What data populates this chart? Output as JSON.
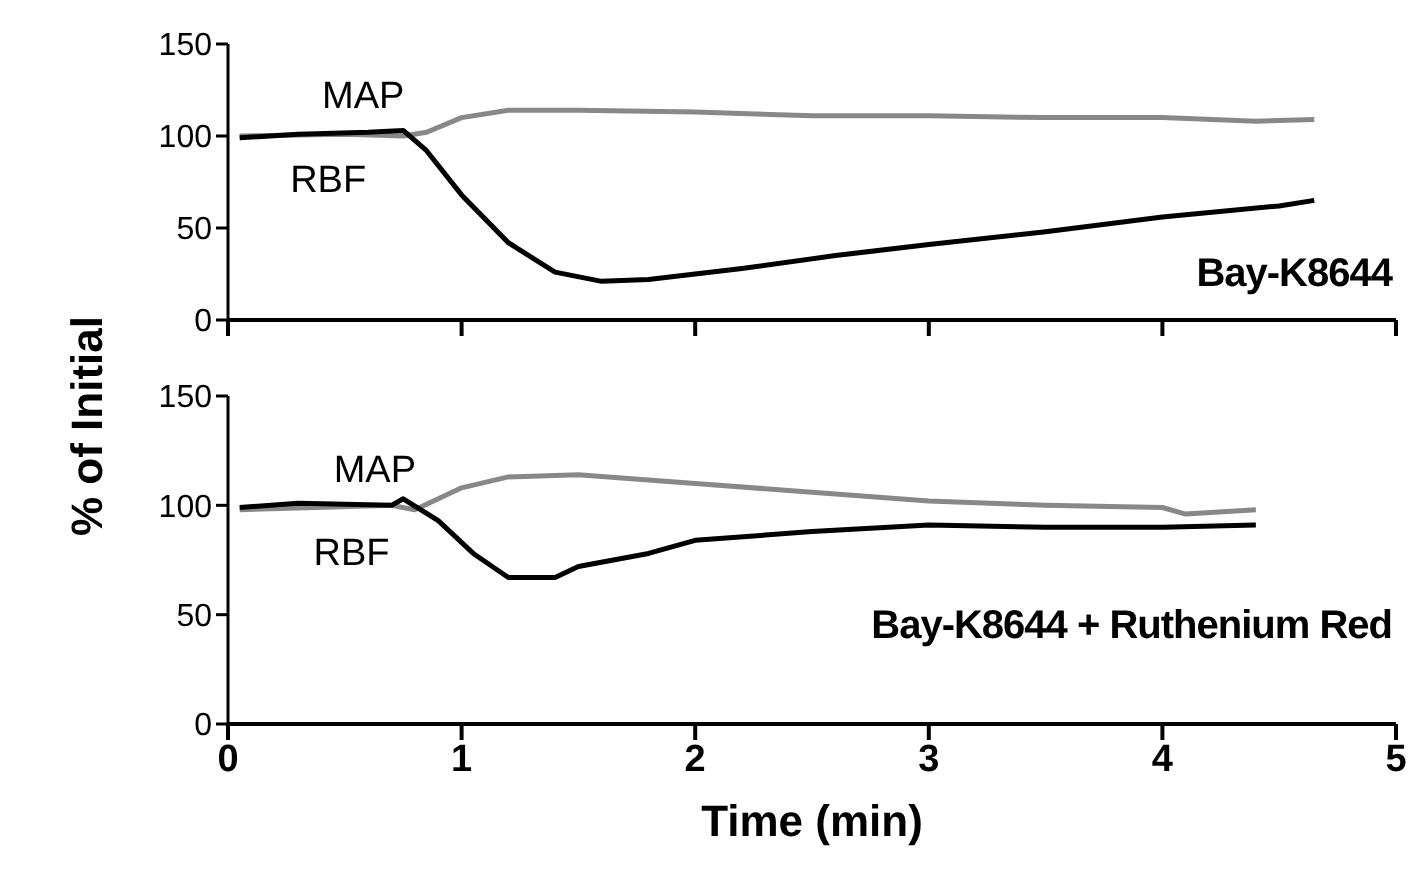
{
  "chart_data": [
    {
      "type": "line",
      "ylabel": "% of Initial",
      "annotations": [
        "Bay-K8644"
      ],
      "xlim": [
        0,
        5
      ],
      "xticks": [
        {
          "value": 0,
          "label": null
        },
        {
          "value": 1,
          "label": null
        },
        {
          "value": 2,
          "label": null
        },
        {
          "value": 3,
          "label": null
        },
        {
          "value": 4,
          "label": null
        },
        {
          "value": 5,
          "label": null
        }
      ],
      "ylim": [
        0,
        150
      ],
      "yticks": [
        0,
        50,
        100,
        150
      ],
      "tick_labels": "y",
      "grid": false,
      "legend": false,
      "marker": "none",
      "series": [
        {
          "name": "MAP",
          "color": "#888888",
          "x": [
            0.05,
            0.5,
            0.75,
            0.85,
            1.0,
            1.2,
            1.5,
            2,
            2.5,
            3,
            3.5,
            4,
            4.4,
            4.65
          ],
          "values": [
            100,
            101,
            100,
            102,
            110,
            114,
            114,
            113,
            111,
            111,
            110,
            110,
            108,
            109
          ]
        },
        {
          "name": "RBF",
          "color": "#000000",
          "x": [
            0.05,
            0.3,
            0.6,
            0.75,
            0.85,
            1.0,
            1.2,
            1.4,
            1.6,
            1.8,
            2.2,
            2.6,
            3,
            3.5,
            4,
            4.5,
            4.65
          ],
          "values": [
            99,
            101,
            102,
            103,
            92,
            68,
            42,
            26,
            21,
            22,
            28,
            35,
            41,
            48,
            56,
            62,
            65
          ]
        }
      ]
    },
    {
      "type": "line",
      "xlabel": "Time (min)",
      "annotations": [
        "Bay-K8644 + Ruthenium Red"
      ],
      "xlim": [
        0,
        5
      ],
      "xticks": [
        0,
        1,
        2,
        3,
        4,
        5
      ],
      "ylim": [
        0,
        150
      ],
      "yticks": [
        0,
        50,
        100,
        150
      ],
      "grid": false,
      "legend": false,
      "marker": "none",
      "series": [
        {
          "name": "MAP",
          "color": "#888888",
          "x": [
            0.05,
            0.7,
            0.8,
            1.0,
            1.2,
            1.5,
            2,
            2.5,
            3,
            3.5,
            4,
            4.1,
            4.4
          ],
          "values": [
            98,
            100,
            98,
            108,
            113,
            114,
            110,
            106,
            102,
            100,
            99,
            96,
            98
          ]
        },
        {
          "name": "RBF",
          "color": "#000000",
          "x": [
            0.05,
            0.3,
            0.7,
            0.75,
            0.9,
            1.05,
            1.2,
            1.4,
            1.5,
            1.8,
            2,
            2.5,
            3,
            3.5,
            4,
            4.4
          ],
          "values": [
            99,
            101,
            100,
            103,
            93,
            78,
            67,
            67,
            72,
            78,
            84,
            88,
            91,
            90,
            90,
            91
          ]
        }
      ]
    }
  ]
}
